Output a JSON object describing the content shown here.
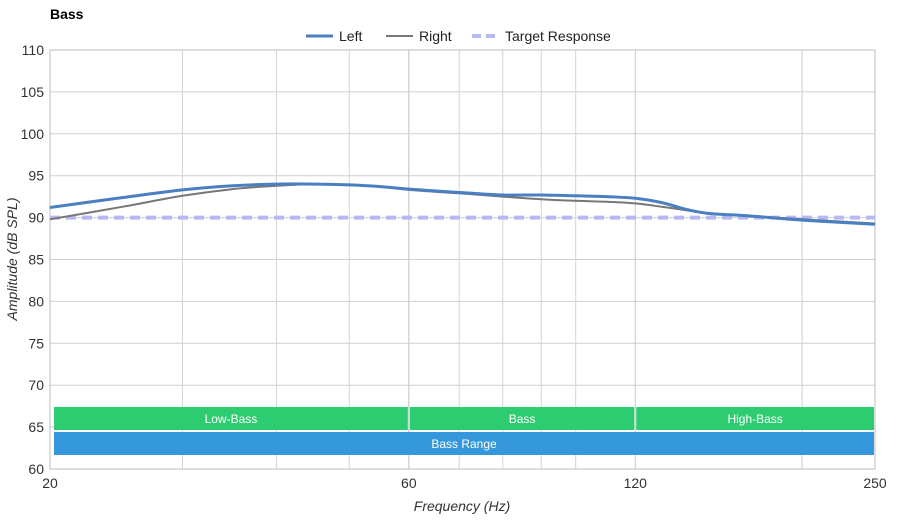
{
  "chart_data": {
    "type": "line",
    "title": "Bass",
    "xlabel": "Frequency (Hz)",
    "ylabel": "Amplitude (dB SPL)",
    "x_scale": "log",
    "xlim": [
      20,
      250
    ],
    "ylim": [
      60,
      110
    ],
    "x_ticks": [
      20,
      60,
      120,
      250
    ],
    "y_ticks": [
      60,
      65,
      70,
      75,
      80,
      85,
      90,
      95,
      100,
      105,
      110
    ],
    "grid": true,
    "legend_position": "top-center",
    "series": [
      {
        "name": "Left",
        "color": "#4a7fc1",
        "style": "solid",
        "x": [
          20,
          25,
          30,
          35,
          40,
          45,
          50,
          55,
          60,
          70,
          80,
          90,
          100,
          110,
          120,
          130,
          140,
          150,
          170,
          200,
          250
        ],
        "y": [
          91.2,
          92.4,
          93.3,
          93.8,
          94.0,
          94.0,
          93.9,
          93.7,
          93.4,
          93.0,
          92.7,
          92.7,
          92.6,
          92.5,
          92.3,
          91.8,
          91.0,
          90.5,
          90.2,
          89.7,
          89.2
        ]
      },
      {
        "name": "Right",
        "color": "#777777",
        "style": "solid",
        "x": [
          20,
          25,
          30,
          35,
          40,
          45,
          50,
          55,
          60,
          70,
          80,
          90,
          100,
          110,
          120,
          130,
          140,
          150,
          170,
          200,
          250
        ],
        "y": [
          89.8,
          91.3,
          92.6,
          93.4,
          93.8,
          94.0,
          93.9,
          93.7,
          93.3,
          92.9,
          92.5,
          92.2,
          92.0,
          91.9,
          91.7,
          91.3,
          90.9,
          90.5,
          90.2,
          89.8,
          89.3
        ]
      },
      {
        "name": "Target Response",
        "color": "#b8b8f2",
        "style": "dashed",
        "x": [
          20,
          250
        ],
        "y": [
          90,
          90
        ]
      }
    ],
    "bands": [
      {
        "label": "Low-Bass",
        "from": 20,
        "to": 60,
        "color": "#2ecc71",
        "row": 1
      },
      {
        "label": "Bass",
        "from": 60,
        "to": 120,
        "color": "#2ecc71",
        "row": 1
      },
      {
        "label": "High-Bass",
        "from": 120,
        "to": 250,
        "color": "#2ecc71",
        "row": 1
      },
      {
        "label": "Bass Range",
        "from": 20,
        "to": 250,
        "color": "#3498db",
        "row": 2
      }
    ]
  }
}
